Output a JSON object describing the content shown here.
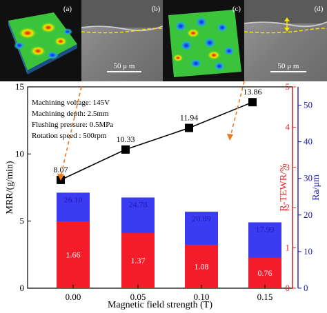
{
  "panels": [
    {
      "label": "(a)"
    },
    {
      "label": "(b)",
      "scalebar": "50 μ m"
    },
    {
      "label": "(c)"
    },
    {
      "label": "(d)",
      "scalebar": "50 μ m"
    }
  ],
  "chart_data": {
    "type": "bar",
    "xlabel": "Magnetic field strength (T)",
    "categories": [
      "0.00",
      "0.05",
      "0.10",
      "0.15"
    ],
    "annotation_lines": [
      "Machining voltage: 145V",
      "Machining depth: 2.5mm",
      "Flushing pressure: 0.5MPa",
      "Rotation speed : 500rpm"
    ],
    "axes": {
      "left": {
        "label": "MRR/(g/min)",
        "ylim": [
          0,
          15
        ],
        "ticks": [
          "0",
          "5",
          "10",
          "15"
        ],
        "color": "#000000"
      },
      "right1": {
        "label": "R-TEWR/%",
        "ylim": [
          0,
          5
        ],
        "ticks": [
          "0",
          "1",
          "2",
          "3",
          "4",
          "5"
        ],
        "color": "#e32222"
      },
      "right2": {
        "label": "Ra/μm",
        "ylim": [
          0,
          55
        ],
        "ticks": [
          "0",
          "10",
          "20",
          "30",
          "40",
          "50"
        ],
        "color": "#1c1cb4"
      }
    },
    "series": [
      {
        "name": "MRR",
        "type": "line",
        "axis": "left",
        "values": [
          8.07,
          10.33,
          11.94,
          13.86
        ],
        "labels": [
          "8.07",
          "10.33",
          "11.94",
          "13.86"
        ],
        "color": "#000000"
      },
      {
        "name": "Ra",
        "type": "bar",
        "axis": "right2",
        "values": [
          26.1,
          24.78,
          20.89,
          17.99
        ],
        "labels": [
          "26.10",
          "24.78",
          "20.89",
          "17.99"
        ],
        "color": "#3b3bf2"
      },
      {
        "name": "R-TEWR",
        "type": "bar",
        "axis": "right1",
        "values": [
          1.66,
          1.37,
          1.08,
          0.76
        ],
        "labels": [
          "1.66",
          "1.37",
          "1.08",
          "0.76"
        ],
        "color": "#f21c2a"
      }
    ],
    "grid": false
  }
}
